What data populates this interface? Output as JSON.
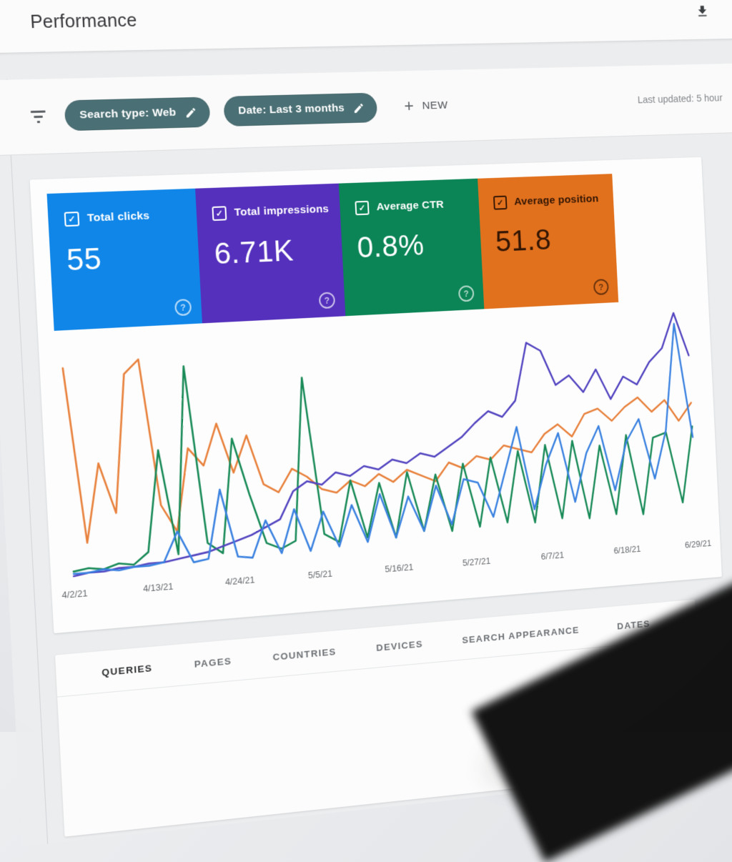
{
  "header": {
    "title": "Performance"
  },
  "filter_bar": {
    "chips": [
      {
        "label": "Search type: Web"
      },
      {
        "label": "Date: Last 3 months"
      }
    ],
    "new_button": {
      "plus": "+",
      "label": "NEW"
    },
    "last_updated": "Last updated: 5 hour"
  },
  "metric_cards": [
    {
      "id": "total-clicks",
      "label": "Total clicks",
      "value": "55",
      "checked": true,
      "bg_color": "#1086e8",
      "text_color": "#ffffff"
    },
    {
      "id": "total-impressions",
      "label": "Total impressions",
      "value": "6.71K",
      "checked": true,
      "bg_color": "#5430bc",
      "text_color": "#ffffff"
    },
    {
      "id": "average-ctr",
      "label": "Average CTR",
      "value": "0.8%",
      "checked": true,
      "bg_color": "#0b8456",
      "text_color": "#ffffff"
    },
    {
      "id": "average-position",
      "label": "Average position",
      "value": "51.8",
      "checked": true,
      "bg_color": "#e2711e",
      "text_color": "#331603"
    }
  ],
  "chart_data": {
    "type": "line",
    "x_tick_labels": [
      "4/2/21",
      "4/13/21",
      "4/24/21",
      "5/5/21",
      "5/16/21",
      "5/27/21",
      "6/7/21",
      "6/18/21",
      "6/29/21"
    ],
    "x_tick_days": [
      0,
      11,
      22,
      33,
      44,
      55,
      66,
      77,
      88
    ],
    "x_range_days": [
      0,
      88
    ],
    "y_axis_visible": false,
    "y_unit": "percent of chart height (no y-axis labels visible)",
    "grid": false,
    "legend_position": "none (series toggled by metric cards above)",
    "series": [
      {
        "name": "Clicks",
        "color": "#3b82e0",
        "values_pct": [
          1,
          1,
          2,
          1,
          2,
          2,
          3,
          16,
          2,
          3,
          33,
          3,
          2,
          18,
          3,
          22,
          3,
          20,
          4,
          22,
          5,
          26,
          6,
          24,
          8,
          28,
          10,
          30,
          28,
          12,
          32,
          52,
          14,
          34,
          48,
          16,
          38,
          50,
          20,
          42,
          52,
          24,
          46,
          95,
          42
        ]
      },
      {
        "name": "Impressions",
        "color": "#5345c0",
        "values_pct": [
          0,
          1,
          1,
          2,
          2,
          3,
          3,
          4,
          5,
          6,
          8,
          10,
          12,
          15,
          18,
          30,
          34,
          32,
          37,
          35,
          39,
          37,
          41,
          39,
          43,
          41,
          45,
          49,
          55,
          60,
          57,
          64,
          90,
          86,
          70,
          74,
          66,
          76,
          62,
          72,
          68,
          78,
          84,
          100,
          80
        ]
      },
      {
        "name": "CTR",
        "color": "#188a57",
        "values_pct": [
          2,
          3,
          2,
          4,
          3,
          8,
          52,
          6,
          88,
          10,
          5,
          55,
          30,
          8,
          5,
          8,
          80,
          10,
          6,
          33,
          7,
          31,
          6,
          35,
          8,
          33,
          7,
          37,
          8,
          39,
          9,
          41,
          8,
          43,
          9,
          44,
          8,
          41,
          9,
          45,
          8,
          43,
          45,
          12,
          47
        ]
      },
      {
        "name": "Position",
        "color": "#e8813c",
        "values_pct": [
          90,
          14,
          48,
          26,
          86,
          92,
          28,
          16,
          52,
          44,
          62,
          40,
          56,
          34,
          30,
          40,
          36,
          30,
          28,
          33,
          30,
          35,
          31,
          36,
          33,
          30,
          38,
          35,
          40,
          38,
          44,
          42,
          40,
          48,
          52,
          46,
          56,
          58,
          52,
          58,
          62,
          55,
          60,
          50,
          58
        ]
      }
    ]
  },
  "tabs": {
    "items": [
      {
        "label": "QUERIES",
        "active": true
      },
      {
        "label": "PAGES",
        "active": false
      },
      {
        "label": "COUNTRIES",
        "active": false
      },
      {
        "label": "DEVICES",
        "active": false
      },
      {
        "label": "SEARCH APPEARANCE",
        "active": false
      },
      {
        "label": "DATES",
        "active": false
      }
    ]
  },
  "icons": {
    "download": "download-icon",
    "filter": "funnel-icon",
    "edit": "pencil-icon",
    "plus": "plus-icon",
    "help": "help-circle-icon",
    "checkbox": "checked-checkbox-icon"
  },
  "colors": {
    "chip_bg": "#4a6f74",
    "page_bg": "#ebedef",
    "panel_bg": "#fdfdfd",
    "topbar_bg": "#fbfbfb",
    "tab_text": "#6d7175",
    "tab_active_text": "#2b2d2f",
    "axis_label_text": "#64686c"
  }
}
